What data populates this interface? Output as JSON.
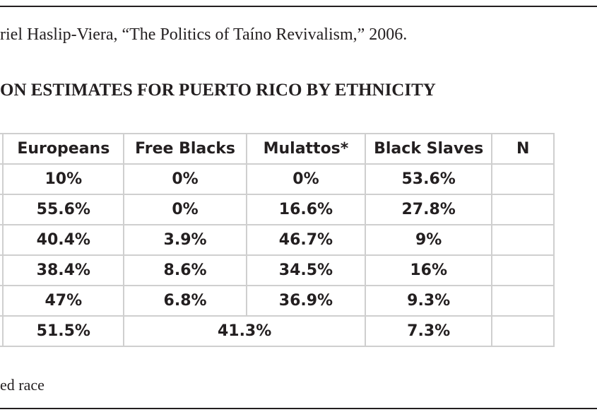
{
  "citation": "riel Haslip-Viera, “The Politics of Taíno Revivalism,” 2006.",
  "title": "ON ESTIMATES FOR PUERTO RICO BY ETHNICITY",
  "table": {
    "headers": [
      "Europeans",
      "Free Blacks",
      "Mulattos*",
      "Black Slaves",
      "N"
    ],
    "rows": [
      [
        "10%",
        "0%",
        "0%",
        "53.6%"
      ],
      [
        "55.6%",
        "0%",
        "16.6%",
        "27.8%"
      ],
      [
        "40.4%",
        "3.9%",
        "46.7%",
        "9%"
      ],
      [
        "38.4%",
        "8.6%",
        "34.5%",
        "16%"
      ],
      [
        "47%",
        "6.8%",
        "36.9%",
        "9.3%"
      ],
      [
        "51.5%",
        "41.3%",
        "7.3%"
      ]
    ]
  },
  "footnote": "ed race"
}
